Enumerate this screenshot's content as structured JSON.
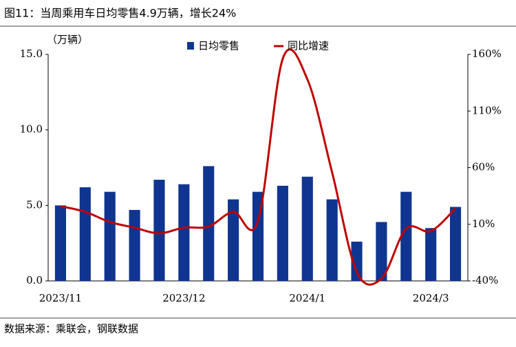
{
  "chart_data": {
    "type": "bar_line",
    "title": "图11：当周乘用车日均零售4.9万辆，增长24%",
    "y_label": "（万辆）",
    "source": "数据来源：乘联会，钢联数据",
    "categories": [
      "2023/11",
      null,
      null,
      null,
      null,
      "2023/12",
      null,
      null,
      null,
      null,
      "2024/1",
      null,
      null,
      null,
      null,
      "2024/3",
      null
    ],
    "series": [
      {
        "name": "日均零售",
        "type": "bar",
        "color": "#0f3590",
        "values": [
          5.0,
          6.2,
          5.9,
          4.7,
          6.7,
          6.4,
          7.6,
          5.4,
          5.9,
          6.3,
          6.9,
          5.4,
          2.6,
          3.9,
          5.9,
          3.5,
          4.9
        ]
      },
      {
        "name": "同比增速",
        "type": "line",
        "axis": "y2",
        "color": "#c00000",
        "values": [
          26,
          21,
          12,
          7,
          2,
          7,
          8,
          21,
          13,
          156,
          138,
          56,
          -32,
          -38,
          6,
          4,
          24
        ]
      }
    ],
    "ylim": [
      0,
      15
    ],
    "yticks": [
      {
        "value": 0,
        "label": "0.0"
      },
      {
        "value": 5,
        "label": "5.0"
      },
      {
        "value": 10,
        "label": "10.0"
      },
      {
        "value": 15,
        "label": "15.0"
      }
    ],
    "y2lim": [
      -40,
      160
    ],
    "y2ticks": [
      {
        "value": -40,
        "label": "-40%"
      },
      {
        "value": 10,
        "label": "10%"
      },
      {
        "value": 60,
        "label": "60%"
      },
      {
        "value": 110,
        "label": "110%"
      },
      {
        "value": 160,
        "label": "160%"
      }
    ],
    "legend": "top"
  }
}
